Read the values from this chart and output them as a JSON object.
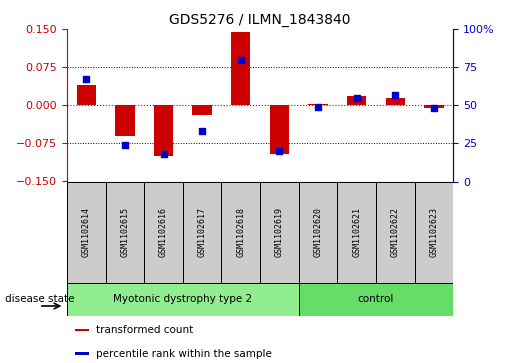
{
  "title": "GDS5276 / ILMN_1843840",
  "samples": [
    "GSM1102614",
    "GSM1102615",
    "GSM1102616",
    "GSM1102617",
    "GSM1102618",
    "GSM1102619",
    "GSM1102620",
    "GSM1102621",
    "GSM1102622",
    "GSM1102623"
  ],
  "transformed_count": [
    0.04,
    -0.06,
    -0.1,
    -0.02,
    0.145,
    -0.095,
    0.003,
    0.018,
    0.015,
    -0.005
  ],
  "percentile_rank": [
    67,
    24,
    18,
    33,
    80,
    20,
    49,
    55,
    57,
    48
  ],
  "groups": [
    {
      "label": "Myotonic dystrophy type 2",
      "start": 0,
      "end": 6,
      "color": "#90EE90"
    },
    {
      "label": "control",
      "start": 6,
      "end": 10,
      "color": "#66DD66"
    }
  ],
  "disease_state_label": "disease state",
  "ylim_left": [
    -0.15,
    0.15
  ],
  "ylim_right": [
    0,
    100
  ],
  "yticks_left": [
    -0.15,
    -0.075,
    0,
    0.075,
    0.15
  ],
  "yticks_right": [
    0,
    25,
    50,
    75,
    100
  ],
  "red_color": "#CC0000",
  "blue_color": "#0000CC",
  "bg_plot": "#FFFFFF",
  "bg_sample_box": "#CCCCCC",
  "legend_transformed": "transformed count",
  "legend_percentile": "percentile rank within the sample",
  "bar_width": 0.5
}
